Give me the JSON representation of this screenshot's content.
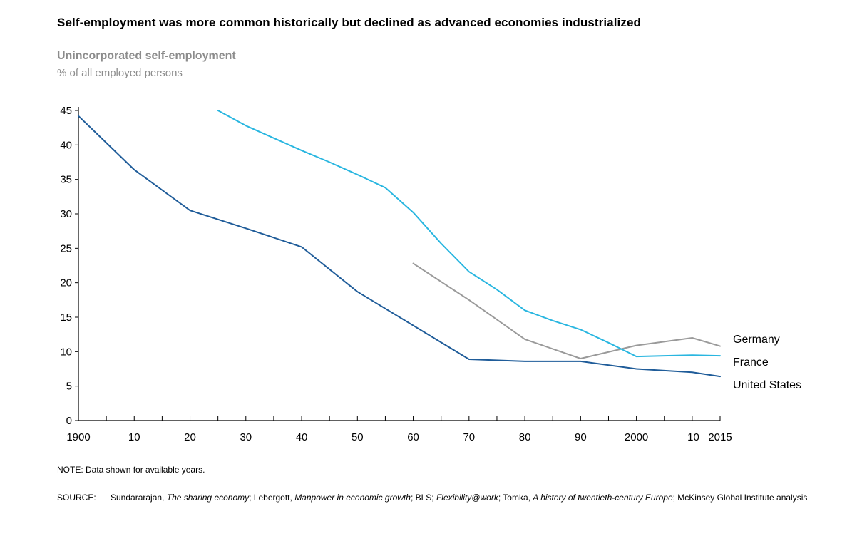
{
  "title": "Self-employment was more common historically but declined as advanced economies industrialized",
  "subtitle": "Unincorporated self-employment",
  "unit": "% of all employed persons",
  "note": "NOTE: Data shown for available years.",
  "source_label": "SOURCE:",
  "source_parts": [
    {
      "text": "Sundararajan, ",
      "italic": false
    },
    {
      "text": "The sharing economy",
      "italic": true
    },
    {
      "text": "; Lebergott, ",
      "italic": false
    },
    {
      "text": "Manpower in economic growth",
      "italic": true
    },
    {
      "text": "; BLS; ",
      "italic": false
    },
    {
      "text": "Flexibility@work",
      "italic": true
    },
    {
      "text": "; Tomka, ",
      "italic": false
    },
    {
      "text": "A history of twentieth-century Europe",
      "italic": true
    },
    {
      "text": "; McKinsey Global Institute analysis",
      "italic": false
    }
  ],
  "chart_data": {
    "type": "line",
    "title": "Self-employment was more common historically but declined as advanced economies industrialized",
    "ylabel": "% of all employed persons",
    "xlim": [
      1900,
      2015
    ],
    "ylim": [
      0,
      45
    ],
    "yticks": [
      0,
      5,
      10,
      15,
      20,
      25,
      30,
      35,
      40,
      45
    ],
    "xticks": [
      1900,
      1910,
      1920,
      1930,
      1940,
      1950,
      1960,
      1970,
      1980,
      1990,
      2000,
      2010,
      2015
    ],
    "xtick_labels": [
      "1900",
      "10",
      "20",
      "30",
      "40",
      "50",
      "60",
      "70",
      "80",
      "90",
      "2000",
      "10",
      "2015"
    ],
    "grid": false,
    "legend": "direct labels at right end of lines",
    "series": [
      {
        "name": "Germany",
        "color": "#9a9a9a",
        "x": [
          1960,
          1970,
          1980,
          1990,
          2000,
          2010,
          2015
        ],
        "y": [
          22.8,
          17.5,
          11.8,
          9.0,
          10.9,
          12.0,
          10.8
        ]
      },
      {
        "name": "France",
        "color": "#29b6e0",
        "x": [
          1925,
          1930,
          1935,
          1940,
          1945,
          1950,
          1955,
          1960,
          1965,
          1970,
          1975,
          1980,
          1985,
          1990,
          1995,
          2000,
          2005,
          2010,
          2015
        ],
        "y": [
          45.0,
          42.8,
          41.0,
          39.2,
          37.5,
          35.7,
          33.8,
          30.2,
          25.7,
          21.6,
          19.0,
          16.0,
          14.5,
          13.2,
          11.3,
          9.3,
          9.4,
          9.5,
          9.4
        ]
      },
      {
        "name": "United States",
        "color": "#1f5c99",
        "x": [
          1900,
          1910,
          1920,
          1930,
          1940,
          1950,
          1960,
          1970,
          1980,
          1990,
          2000,
          2010,
          2015
        ],
        "y": [
          44.2,
          36.4,
          30.5,
          27.9,
          25.2,
          18.7,
          13.8,
          8.9,
          8.6,
          8.6,
          7.5,
          7.0,
          6.4
        ]
      }
    ]
  }
}
